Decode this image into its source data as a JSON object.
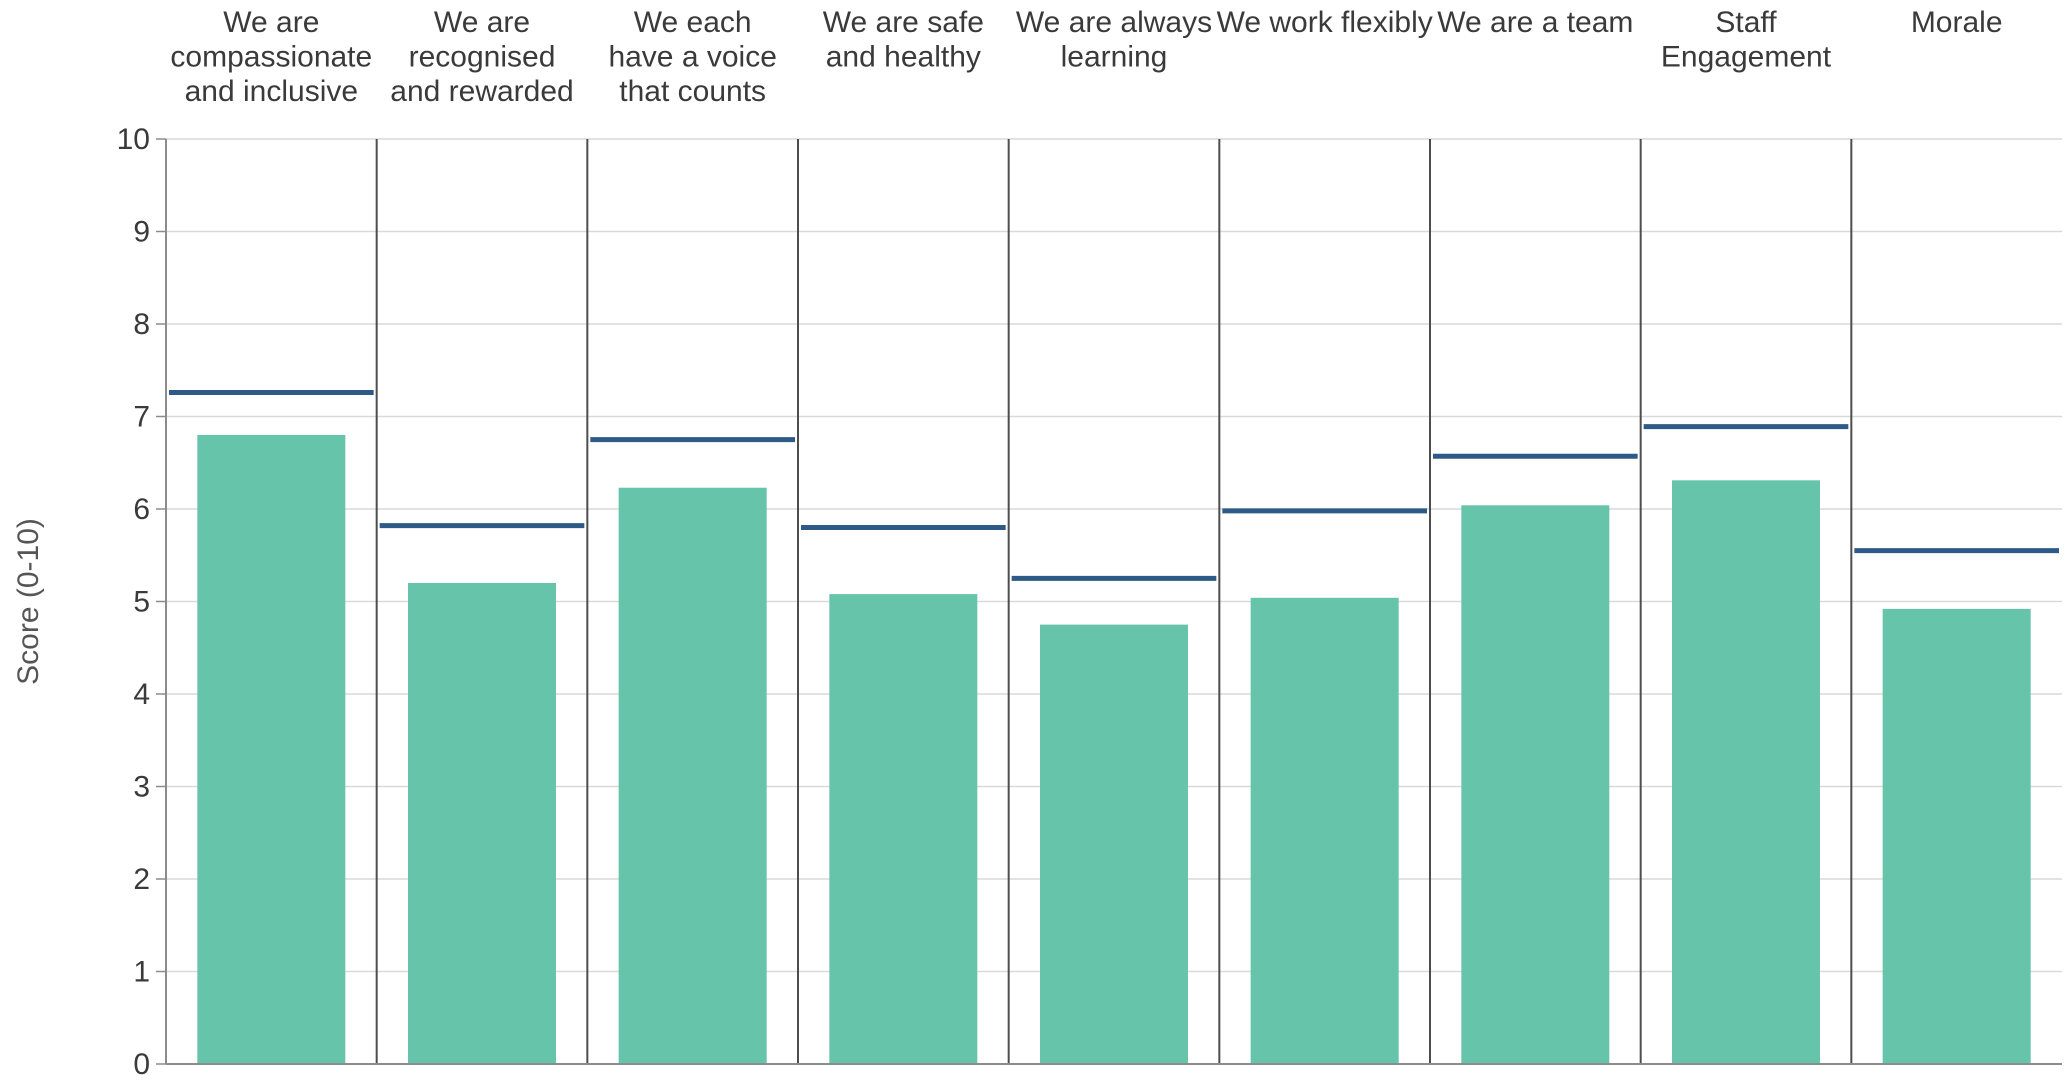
{
  "chart_data": {
    "type": "bar",
    "title": "",
    "xlabel": "",
    "ylabel": "Score (0-10)",
    "ylim": [
      0,
      10
    ],
    "yticks": [
      "0",
      "1",
      "2",
      "3",
      "4",
      "5",
      "6",
      "7",
      "8",
      "9",
      "10"
    ],
    "grid": true,
    "categories": [
      [
        "We are",
        "compassionate",
        "and inclusive"
      ],
      [
        "We are",
        "recognised",
        "and rewarded"
      ],
      [
        "We each",
        "have a voice",
        "that counts"
      ],
      [
        "We are safe",
        "and healthy"
      ],
      [
        "We are always",
        "learning"
      ],
      [
        "We work flexibly"
      ],
      [
        "We are a team"
      ],
      [
        "Staff",
        "Engagement"
      ],
      [
        "Morale"
      ]
    ],
    "series": [
      {
        "values": [
          6.8,
          5.2,
          6.23,
          5.08,
          4.75,
          5.04,
          6.04,
          6.31,
          4.92
        ],
        "color": "#66c4aa",
        "mark": "bar"
      },
      {
        "values": [
          7.26,
          5.82,
          6.75,
          5.8,
          5.25,
          5.98,
          6.57,
          6.89,
          5.55
        ],
        "color": "#2e5a87",
        "mark": "line-marker"
      }
    ],
    "colors": {
      "grid": "#d9d9d9",
      "divider": "#4d4d4d",
      "axis": "#8c8c8c"
    }
  }
}
